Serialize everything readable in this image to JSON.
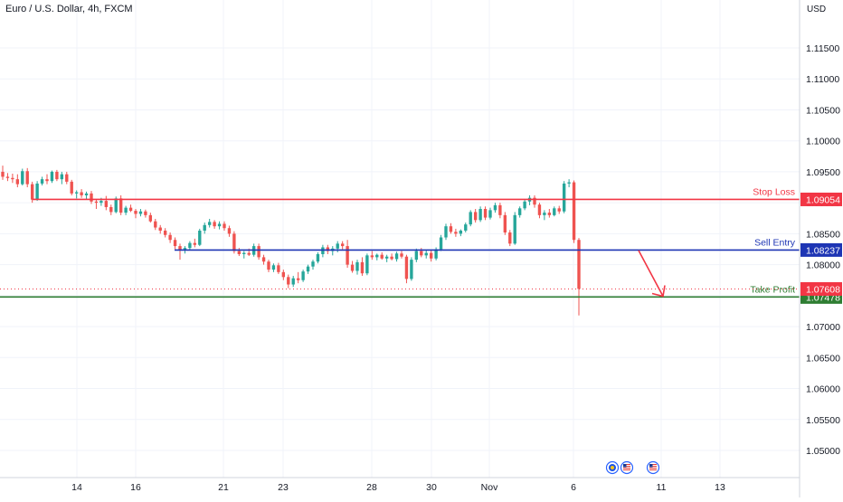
{
  "header": {
    "symbol_title": "Euro / U.S. Dollar, 4h, FXCM",
    "currency": "USD"
  },
  "colors": {
    "up": "#26a69a",
    "down": "#ef5350",
    "stop_loss": "#f23645",
    "sell_entry": "#1e35b4",
    "take_profit": "#2e7d32",
    "last_price": "#f23645",
    "arrow": "#f23645"
  },
  "icons": [
    "globe-flag-icon",
    "us-flag-icon",
    "us-flag-icon"
  ],
  "chart_data": {
    "type": "candlestick",
    "y_axis": {
      "ticks": [
        "1.05000",
        "1.05500",
        "1.06000",
        "1.06500",
        "1.07000",
        "1.07500",
        "1.08000",
        "1.08500",
        "1.09000",
        "1.09500",
        "1.10000",
        "1.10500",
        "1.11000",
        "1.11500"
      ],
      "range": [
        1.0467,
        1.119
      ]
    },
    "x_axis": {
      "ticks": [
        "14",
        "16",
        "21",
        "23",
        "28",
        "30",
        "Nov",
        "6",
        "11",
        "13"
      ]
    },
    "levels": [
      {
        "label": "Stop Loss",
        "value": "1.09054",
        "price": 1.09054,
        "role": "stop_loss"
      },
      {
        "label": "Sell Entry",
        "value": "1.08237",
        "price": 1.08237,
        "role": "sell_entry"
      },
      {
        "label": "Take Profit",
        "value": "1.07478",
        "price": 1.07478,
        "role": "take_profit"
      }
    ],
    "last_price": {
      "value": "1.07608",
      "price": 1.07608
    },
    "candles": [
      [
        1.095,
        1.096,
        1.0937,
        1.0942
      ],
      [
        1.0942,
        1.0948,
        1.0935,
        1.094
      ],
      [
        1.094,
        1.0947,
        1.0932,
        1.0938
      ],
      [
        1.0938,
        1.0946,
        1.0925,
        1.093
      ],
      [
        1.093,
        1.0955,
        1.0928,
        1.0951
      ],
      [
        1.0951,
        1.0956,
        1.0925,
        1.093
      ],
      [
        1.093,
        1.0934,
        1.09,
        1.0905
      ],
      [
        1.0905,
        1.0935,
        1.0903,
        1.0931
      ],
      [
        1.0931,
        1.0942,
        1.0928,
        1.0938
      ],
      [
        1.0938,
        1.0946,
        1.093,
        1.0935
      ],
      [
        1.0935,
        1.0952,
        1.0932,
        1.095
      ],
      [
        1.095,
        1.0953,
        1.0935,
        1.0938
      ],
      [
        1.0938,
        1.095,
        1.093,
        1.0946
      ],
      [
        1.0946,
        1.095,
        1.093,
        1.0934
      ],
      [
        1.0934,
        1.0937,
        1.0912,
        1.0915
      ],
      [
        1.0915,
        1.092,
        1.0907,
        1.0917
      ],
      [
        1.0917,
        1.0922,
        1.0908,
        1.0912
      ],
      [
        1.0912,
        1.0918,
        1.0905,
        1.0915
      ],
      [
        1.0915,
        1.0919,
        1.0898,
        1.0902
      ],
      [
        1.0902,
        1.0906,
        1.089,
        1.09
      ],
      [
        1.09,
        1.0908,
        1.0895,
        1.0903
      ],
      [
        1.0903,
        1.0911,
        1.0888,
        1.0893
      ],
      [
        1.0893,
        1.0897,
        1.088,
        1.0885
      ],
      [
        1.0885,
        1.091,
        1.0883,
        1.0907
      ],
      [
        1.0907,
        1.0912,
        1.088,
        1.0884
      ],
      [
        1.0884,
        1.0895,
        1.088,
        1.0892
      ],
      [
        1.0892,
        1.0897,
        1.0885,
        1.0887
      ],
      [
        1.0887,
        1.089,
        1.0875,
        1.0882
      ],
      [
        1.0882,
        1.089,
        1.0878,
        1.0886
      ],
      [
        1.0886,
        1.0889,
        1.0876,
        1.088
      ],
      [
        1.088,
        1.0884,
        1.0868,
        1.087
      ],
      [
        1.087,
        1.0874,
        1.0856,
        1.086
      ],
      [
        1.086,
        1.0864,
        1.085,
        1.0855
      ],
      [
        1.0855,
        1.0859,
        1.0844,
        1.0848
      ],
      [
        1.0848,
        1.0852,
        1.0835,
        1.084
      ],
      [
        1.084,
        1.0844,
        1.0825,
        1.083
      ],
      [
        1.083,
        1.0834,
        1.0808,
        1.0823
      ],
      [
        1.0823,
        1.083,
        1.0818,
        1.0827
      ],
      [
        1.0827,
        1.0838,
        1.0824,
        1.0835
      ],
      [
        1.0835,
        1.0842,
        1.0828,
        1.0832
      ],
      [
        1.0832,
        1.0858,
        1.083,
        1.0855
      ],
      [
        1.0855,
        1.0868,
        1.085,
        1.0864
      ],
      [
        1.0864,
        1.0874,
        1.086,
        1.0869
      ],
      [
        1.0869,
        1.0872,
        1.0858,
        1.0862
      ],
      [
        1.0862,
        1.087,
        1.0857,
        1.0866
      ],
      [
        1.0866,
        1.087,
        1.0855,
        1.0859
      ],
      [
        1.0859,
        1.0863,
        1.0845,
        1.085
      ],
      [
        1.085,
        1.0854,
        1.0818,
        1.0822
      ],
      [
        1.0822,
        1.0827,
        1.0814,
        1.0817
      ],
      [
        1.0817,
        1.0822,
        1.081,
        1.0819
      ],
      [
        1.0819,
        1.0826,
        1.0814,
        1.0816
      ],
      [
        1.0816,
        1.0834,
        1.0813,
        1.083
      ],
      [
        1.083,
        1.0834,
        1.0808,
        1.0812
      ],
      [
        1.0812,
        1.0816,
        1.08,
        1.0805
      ],
      [
        1.0805,
        1.0808,
        1.0788,
        1.0792
      ],
      [
        1.0792,
        1.0802,
        1.0788,
        1.0799
      ],
      [
        1.0799,
        1.0803,
        1.0785,
        1.0788
      ],
      [
        1.0788,
        1.0792,
        1.0775,
        1.078
      ],
      [
        1.078,
        1.0784,
        1.0762,
        1.0768
      ],
      [
        1.0768,
        1.0782,
        1.0764,
        1.0778
      ],
      [
        1.0778,
        1.0788,
        1.077,
        1.0775
      ],
      [
        1.0775,
        1.0792,
        1.0772,
        1.0789
      ],
      [
        1.0789,
        1.08,
        1.0785,
        1.0797
      ],
      [
        1.0797,
        1.0808,
        1.0792,
        1.0805
      ],
      [
        1.0805,
        1.082,
        1.0802,
        1.0817
      ],
      [
        1.0817,
        1.0832,
        1.0812,
        1.0828
      ],
      [
        1.0828,
        1.0832,
        1.0817,
        1.0822
      ],
      [
        1.0822,
        1.083,
        1.0815,
        1.0826
      ],
      [
        1.0826,
        1.0838,
        1.082,
        1.0834
      ],
      [
        1.0834,
        1.0838,
        1.0825,
        1.083
      ],
      [
        1.083,
        1.084,
        1.0795,
        1.08
      ],
      [
        1.08,
        1.0806,
        1.0787,
        1.079
      ],
      [
        1.079,
        1.0808,
        1.0784,
        1.0804
      ],
      [
        1.0804,
        1.0812,
        1.0782,
        1.0786
      ],
      [
        1.0786,
        1.0818,
        1.0783,
        1.0815
      ],
      [
        1.0815,
        1.0822,
        1.0808,
        1.0812
      ],
      [
        1.0812,
        1.0818,
        1.0807,
        1.0816
      ],
      [
        1.0816,
        1.082,
        1.0808,
        1.081
      ],
      [
        1.081,
        1.0816,
        1.0804,
        1.0813
      ],
      [
        1.0813,
        1.0818,
        1.0807,
        1.0809
      ],
      [
        1.0809,
        1.0821,
        1.0805,
        1.0818
      ],
      [
        1.0818,
        1.0822,
        1.081,
        1.0813
      ],
      [
        1.0813,
        1.0816,
        1.077,
        1.0777
      ],
      [
        1.0777,
        1.0812,
        1.0774,
        1.0808
      ],
      [
        1.0808,
        1.0826,
        1.0804,
        1.0822
      ],
      [
        1.0822,
        1.0827,
        1.0812,
        1.0815
      ],
      [
        1.0815,
        1.0823,
        1.081,
        1.0819
      ],
      [
        1.0819,
        1.0824,
        1.0805,
        1.081
      ],
      [
        1.081,
        1.0828,
        1.0807,
        1.0825
      ],
      [
        1.0825,
        1.0848,
        1.0822,
        1.0844
      ],
      [
        1.0844,
        1.0866,
        1.084,
        1.0862
      ],
      [
        1.0862,
        1.0867,
        1.085,
        1.0853
      ],
      [
        1.0853,
        1.0858,
        1.0845,
        1.085
      ],
      [
        1.085,
        1.0857,
        1.0846,
        1.0855
      ],
      [
        1.0855,
        1.0868,
        1.0852,
        1.0865
      ],
      [
        1.0865,
        1.0888,
        1.0862,
        1.0885
      ],
      [
        1.0885,
        1.089,
        1.0868,
        1.0872
      ],
      [
        1.0872,
        1.0894,
        1.0869,
        1.089
      ],
      [
        1.089,
        1.0894,
        1.0872,
        1.0876
      ],
      [
        1.0876,
        1.0892,
        1.0873,
        1.0888
      ],
      [
        1.0888,
        1.09,
        1.0884,
        1.0896
      ],
      [
        1.0896,
        1.09,
        1.0875,
        1.088
      ],
      [
        1.088,
        1.0885,
        1.0848,
        1.0852
      ],
      [
        1.0852,
        1.0856,
        1.083,
        1.0834
      ],
      [
        1.0834,
        1.0885,
        1.0832,
        1.088
      ],
      [
        1.088,
        1.0894,
        1.0876,
        1.0891
      ],
      [
        1.0891,
        1.0906,
        1.0888,
        1.0902
      ],
      [
        1.0902,
        1.0912,
        1.0896,
        1.0908
      ],
      [
        1.0908,
        1.0912,
        1.0892,
        1.0897
      ],
      [
        1.0897,
        1.09,
        1.0875,
        1.088
      ],
      [
        1.088,
        1.0888,
        1.0872,
        1.0884
      ],
      [
        1.0884,
        1.089,
        1.0876,
        1.088
      ],
      [
        1.088,
        1.0894,
        1.0878,
        1.0891
      ],
      [
        1.0891,
        1.0895,
        1.0882,
        1.0886
      ],
      [
        1.0886,
        1.0935,
        1.0883,
        1.0931
      ],
      [
        1.0931,
        1.0938,
        1.0925,
        1.0933
      ],
      [
        1.0933,
        1.0936,
        1.0835,
        1.084
      ],
      [
        1.084,
        1.0843,
        1.0718,
        1.0761
      ]
    ]
  }
}
